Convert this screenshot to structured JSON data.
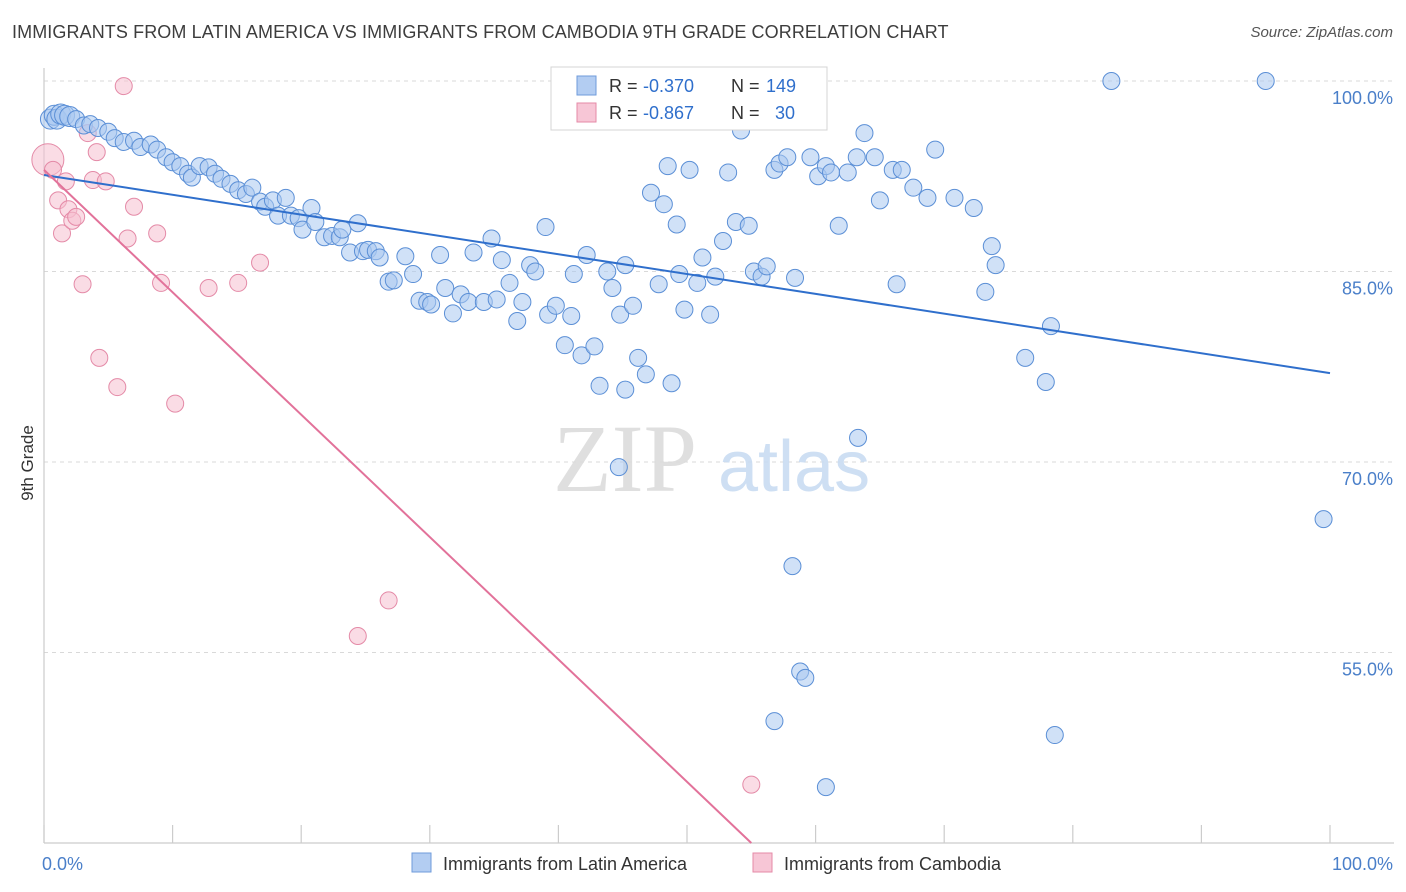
{
  "title": "IMMIGRANTS FROM LATIN AMERICA VS IMMIGRANTS FROM CAMBODIA 9TH GRADE CORRELATION CHART",
  "source": "Source: ZipAtlas.com",
  "watermark": {
    "zip": "ZIP",
    "atlas": "atlas"
  },
  "colors": {
    "blue_fill": "#a9c8f0",
    "blue_stroke": "#5b8fd6",
    "blue_line": "#2f6fcc",
    "pink_fill": "#f5bfd0",
    "pink_stroke": "#e48aa7",
    "pink_line": "#e2729a",
    "tick_text": "#4a7fc9",
    "grid": "#d9d9d9"
  },
  "stats_legend": [
    {
      "r_label": "R =",
      "r_value": "-0.370",
      "n_label": "N =",
      "n_value": "149"
    },
    {
      "r_label": "R =",
      "r_value": "-0.867",
      "n_label": "N =",
      "n_value": "30"
    }
  ],
  "chart_data": {
    "type": "scatter",
    "title": "IMMIGRANTS FROM LATIN AMERICA VS IMMIGRANTS FROM CAMBODIA 9TH GRADE CORRELATION CHART",
    "xlabel": "",
    "ylabel": "9th Grade",
    "xlim": [
      0,
      100
    ],
    "ylim": [
      40,
      100
    ],
    "x_tick_labels": [
      "0.0%",
      "100.0%"
    ],
    "y_ticks": [
      55,
      70,
      85,
      100
    ],
    "y_tick_labels": [
      "55.0%",
      "70.0%",
      "85.0%",
      "100.0%"
    ],
    "grid": true,
    "legend_position": "bottom-center",
    "series": [
      {
        "name": "Immigrants from Latin America",
        "r": -0.37,
        "n": 149,
        "trend": {
          "x": [
            0,
            100
          ],
          "y": [
            92.6,
            77.0
          ]
        },
        "points": [
          [
            0.5,
            97.0
          ],
          [
            0.8,
            97.3
          ],
          [
            1.0,
            97.0
          ],
          [
            1.3,
            97.4
          ],
          [
            1.6,
            97.3
          ],
          [
            2.0,
            97.2
          ],
          [
            2.5,
            97.0
          ],
          [
            3.1,
            96.5
          ],
          [
            3.6,
            96.6
          ],
          [
            4.2,
            96.3
          ],
          [
            5.0,
            96.0
          ],
          [
            5.5,
            95.5
          ],
          [
            6.2,
            95.2
          ],
          [
            7.0,
            95.3
          ],
          [
            7.5,
            94.8
          ],
          [
            8.3,
            95.0
          ],
          [
            8.8,
            94.6
          ],
          [
            9.5,
            94.0
          ],
          [
            10.0,
            93.6
          ],
          [
            10.6,
            93.3
          ],
          [
            11.2,
            92.7
          ],
          [
            11.5,
            92.4
          ],
          [
            12.1,
            93.3
          ],
          [
            12.8,
            93.2
          ],
          [
            13.3,
            92.7
          ],
          [
            13.8,
            92.3
          ],
          [
            14.5,
            91.9
          ],
          [
            15.1,
            91.4
          ],
          [
            15.7,
            91.1
          ],
          [
            16.2,
            91.6
          ],
          [
            16.8,
            90.5
          ],
          [
            17.2,
            90.1
          ],
          [
            17.8,
            90.6
          ],
          [
            18.2,
            89.4
          ],
          [
            18.8,
            90.8
          ],
          [
            19.2,
            89.4
          ],
          [
            19.8,
            89.2
          ],
          [
            20.1,
            88.3
          ],
          [
            20.8,
            90.0
          ],
          [
            21.1,
            88.9
          ],
          [
            21.8,
            87.7
          ],
          [
            22.4,
            87.8
          ],
          [
            23.0,
            87.7
          ],
          [
            23.2,
            88.3
          ],
          [
            23.8,
            86.5
          ],
          [
            24.4,
            88.8
          ],
          [
            24.8,
            86.6
          ],
          [
            25.2,
            86.7
          ],
          [
            25.8,
            86.6
          ],
          [
            26.1,
            86.1
          ],
          [
            26.8,
            84.2
          ],
          [
            27.2,
            84.3
          ],
          [
            28.1,
            86.2
          ],
          [
            28.7,
            84.8
          ],
          [
            29.2,
            82.7
          ],
          [
            29.8,
            82.6
          ],
          [
            30.1,
            82.4
          ],
          [
            30.8,
            86.3
          ],
          [
            31.2,
            83.7
          ],
          [
            31.8,
            81.7
          ],
          [
            32.4,
            83.2
          ],
          [
            33.0,
            82.6
          ],
          [
            33.4,
            86.5
          ],
          [
            34.2,
            82.6
          ],
          [
            34.8,
            87.6
          ],
          [
            35.2,
            82.8
          ],
          [
            35.6,
            85.9
          ],
          [
            36.2,
            84.1
          ],
          [
            36.8,
            81.1
          ],
          [
            37.2,
            82.6
          ],
          [
            37.8,
            85.5
          ],
          [
            38.2,
            85.0
          ],
          [
            39.0,
            88.5
          ],
          [
            39.2,
            81.6
          ],
          [
            39.8,
            82.3
          ],
          [
            40.5,
            79.2
          ],
          [
            41.0,
            81.5
          ],
          [
            41.2,
            84.8
          ],
          [
            41.8,
            78.4
          ],
          [
            42.2,
            86.3
          ],
          [
            42.8,
            79.1
          ],
          [
            43.2,
            76.0
          ],
          [
            43.8,
            85.0
          ],
          [
            44.2,
            83.7
          ],
          [
            44.8,
            81.6
          ],
          [
            45.2,
            85.5
          ],
          [
            45.8,
            82.3
          ],
          [
            45.2,
            75.7
          ],
          [
            46.2,
            78.2
          ],
          [
            46.8,
            76.9
          ],
          [
            47.2,
            91.2
          ],
          [
            47.8,
            84.0
          ],
          [
            48.2,
            90.3
          ],
          [
            48.5,
            93.3
          ],
          [
            48.8,
            76.2
          ],
          [
            49.2,
            88.7
          ],
          [
            49.8,
            82.0
          ],
          [
            50.2,
            93.0
          ],
          [
            50.8,
            84.1
          ],
          [
            51.2,
            86.1
          ],
          [
            51.8,
            81.6
          ],
          [
            52.2,
            84.6
          ],
          [
            52.8,
            87.4
          ],
          [
            53.2,
            92.8
          ],
          [
            53.8,
            88.9
          ],
          [
            54.2,
            96.1
          ],
          [
            54.8,
            88.6
          ],
          [
            55.2,
            85.0
          ],
          [
            55.8,
            84.6
          ],
          [
            56.2,
            85.4
          ],
          [
            56.8,
            93.0
          ],
          [
            57.2,
            93.5
          ],
          [
            57.8,
            94.0
          ],
          [
            58.2,
            61.8
          ],
          [
            58.8,
            53.5
          ],
          [
            59.2,
            53.0
          ],
          [
            59.6,
            94.0
          ],
          [
            60.2,
            92.5
          ],
          [
            60.8,
            93.3
          ],
          [
            61.2,
            92.8
          ],
          [
            61.8,
            88.6
          ],
          [
            62.5,
            92.8
          ],
          [
            63.2,
            94.0
          ],
          [
            63.8,
            95.9
          ],
          [
            64.6,
            94.0
          ],
          [
            65.0,
            90.6
          ],
          [
            66.0,
            93.0
          ],
          [
            66.3,
            84.0
          ],
          [
            66.7,
            93.0
          ],
          [
            67.6,
            91.6
          ],
          [
            68.7,
            90.8
          ],
          [
            69.3,
            94.6
          ],
          [
            70.8,
            90.8
          ],
          [
            72.3,
            90.0
          ],
          [
            73.2,
            83.4
          ],
          [
            73.7,
            87.0
          ],
          [
            74.0,
            85.5
          ],
          [
            76.3,
            78.2
          ],
          [
            77.9,
            76.3
          ],
          [
            78.3,
            80.7
          ],
          [
            83.0,
            100.0
          ],
          [
            95.0,
            100.0
          ],
          [
            99.5,
            65.5
          ],
          [
            78.6,
            48.5
          ],
          [
            63.3,
            71.9
          ],
          [
            56.8,
            49.6
          ],
          [
            60.8,
            44.4
          ],
          [
            44.7,
            69.6
          ],
          [
            49.4,
            84.8
          ],
          [
            58.4,
            84.5
          ]
        ]
      },
      {
        "name": "Immigrants from Cambodia",
        "r": -0.867,
        "n": 30,
        "trend": {
          "x": [
            0,
            55
          ],
          "y": [
            93.0,
            40.0
          ]
        },
        "points": [
          [
            0.3,
            93.8
          ],
          [
            0.7,
            93.0
          ],
          [
            1.1,
            90.6
          ],
          [
            1.4,
            88.0
          ],
          [
            1.7,
            92.1
          ],
          [
            1.9,
            89.9
          ],
          [
            2.2,
            89.0
          ],
          [
            2.5,
            89.3
          ],
          [
            3.0,
            84.0
          ],
          [
            3.4,
            95.9
          ],
          [
            3.8,
            92.2
          ],
          [
            4.1,
            94.4
          ],
          [
            4.3,
            78.2
          ],
          [
            4.8,
            92.1
          ],
          [
            5.7,
            75.9
          ],
          [
            6.2,
            99.6
          ],
          [
            6.5,
            87.6
          ],
          [
            7.0,
            90.1
          ],
          [
            8.8,
            88.0
          ],
          [
            9.1,
            84.1
          ],
          [
            10.2,
            74.6
          ],
          [
            12.8,
            83.7
          ],
          [
            15.1,
            84.1
          ],
          [
            16.8,
            85.7
          ],
          [
            24.4,
            56.3
          ],
          [
            26.8,
            59.1
          ],
          [
            55.0,
            44.6
          ]
        ]
      }
    ]
  },
  "bottom_legend": [
    {
      "label": "Immigrants from Latin America"
    },
    {
      "label": "Immigrants from Cambodia"
    }
  ]
}
